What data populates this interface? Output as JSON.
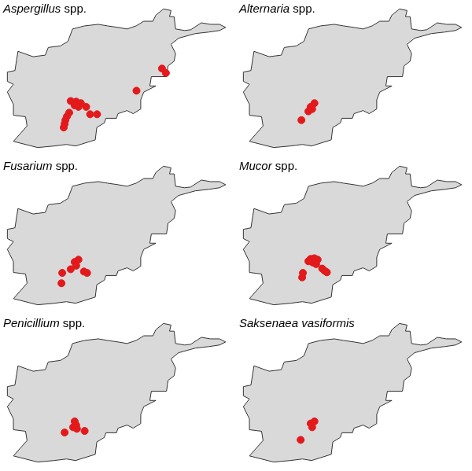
{
  "chart_data": [
    {
      "type": "scatter",
      "title": "Aspergillus spp.",
      "color": "#e3191c",
      "marker": "circle",
      "grid": false,
      "tick_labels": false,
      "xlim": [
        60.3,
        75.3
      ],
      "ylim": [
        29.1,
        38.7
      ],
      "x": [
        64.68,
        65.04,
        65.35,
        64.94,
        65.19,
        64.58,
        64.43,
        64.33,
        64.28,
        64.22,
        65.7,
        65.96,
        66.42,
        69.02,
        70.7,
        70.96
      ],
      "values": [
        32.42,
        32.38,
        32.28,
        32.14,
        32.04,
        31.66,
        31.42,
        31.18,
        30.94,
        30.7,
        32.04,
        31.56,
        31.56,
        33.09,
        34.53,
        34.24
      ]
    },
    {
      "type": "scatter",
      "title": "Alternaria spp.",
      "color": "#e3191c",
      "marker": "circle",
      "grid": false,
      "tick_labels": false,
      "xlim": [
        60.3,
        75.3
      ],
      "ylim": [
        29.1,
        38.7
      ],
      "x": [
        64.94,
        65.19,
        65.04,
        64.79,
        64.33
      ],
      "values": [
        32.04,
        32.28,
        31.9,
        31.75,
        31.18
      ]
    },
    {
      "type": "scatter",
      "title": "Fusarium spp.",
      "color": "#e3191c",
      "marker": "circle",
      "grid": false,
      "tick_labels": false,
      "xlim": [
        60.3,
        75.3
      ],
      "ylim": [
        29.1,
        38.7
      ],
      "x": [
        64.94,
        65.19,
        65.04,
        64.68,
        65.55,
        65.76,
        64.12,
        64.07
      ],
      "values": [
        32.18,
        32.33,
        31.94,
        31.71,
        31.56,
        31.47,
        31.47,
        30.8
      ]
    },
    {
      "type": "scatter",
      "title": "Mucor spp.",
      "color": "#e3191c",
      "marker": "circle",
      "grid": false,
      "tick_labels": false,
      "xlim": [
        60.3,
        75.3
      ],
      "ylim": [
        29.1,
        38.7
      ],
      "x": [
        64.94,
        65.19,
        65.4,
        65.09,
        65.3,
        64.79,
        64.43,
        64.38,
        65.7,
        65.86,
        66.01
      ],
      "values": [
        32.38,
        32.42,
        32.33,
        32.14,
        32.04,
        32.23,
        31.47,
        31.18,
        31.75,
        31.61,
        31.51
      ]
    },
    {
      "type": "scatter",
      "title": "Penicillium spp.",
      "color": "#e3191c",
      "marker": "circle",
      "grid": false,
      "tick_labels": false,
      "xlim": [
        60.3,
        75.3
      ],
      "ylim": [
        29.1,
        38.7
      ],
      "x": [
        64.94,
        65.04,
        64.84,
        65.09,
        64.28,
        65.6
      ],
      "values": [
        32.04,
        31.8,
        31.66,
        31.56,
        31.32,
        31.42
      ]
    },
    {
      "type": "scatter",
      "title": "Saksenaea vasiformis",
      "color": "#e3191c",
      "marker": "circle",
      "grid": false,
      "tick_labels": false,
      "xlim": [
        60.3,
        75.3
      ],
      "ylim": [
        29.1,
        38.7
      ],
      "x": [
        64.94,
        65.19,
        65.04,
        64.28
      ],
      "values": [
        31.9,
        32.04,
        31.66,
        30.84
      ]
    }
  ]
}
